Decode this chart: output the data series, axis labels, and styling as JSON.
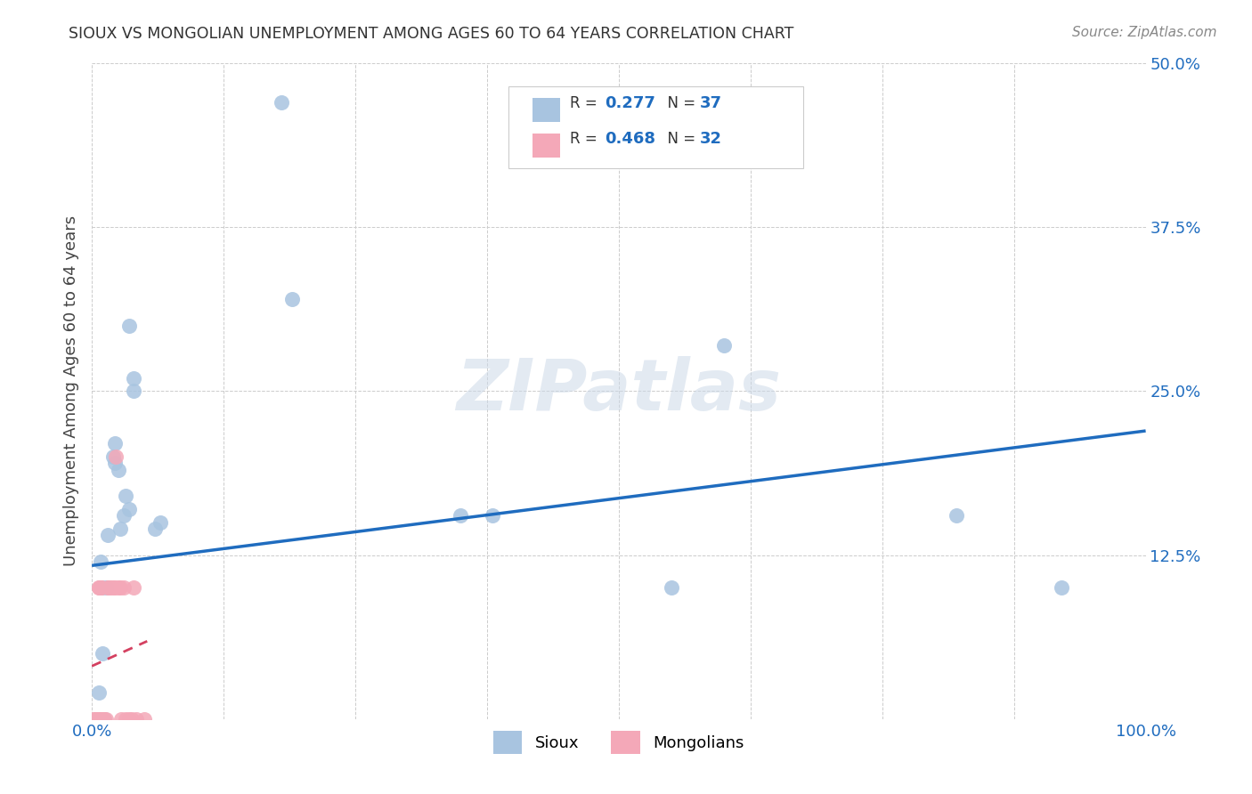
{
  "title": "SIOUX VS MONGOLIAN UNEMPLOYMENT AMONG AGES 60 TO 64 YEARS CORRELATION CHART",
  "source": "Source: ZipAtlas.com",
  "ylabel": "Unemployment Among Ages 60 to 64 years",
  "xlim": [
    0.0,
    1.0
  ],
  "ylim": [
    0.0,
    0.5
  ],
  "xtick_pos": [
    0.0,
    0.125,
    0.25,
    0.375,
    0.5,
    0.625,
    0.75,
    0.875,
    1.0
  ],
  "xticklabels": [
    "0.0%",
    "",
    "",
    "",
    "",
    "",
    "",
    "",
    "100.0%"
  ],
  "ytick_pos": [
    0.0,
    0.125,
    0.25,
    0.375,
    0.5
  ],
  "yticklabels": [
    "",
    "12.5%",
    "25.0%",
    "37.5%",
    "50.0%"
  ],
  "legend_r_sioux": "0.277",
  "legend_n_sioux": "37",
  "legend_r_mongolian": "0.468",
  "legend_n_mongolian": "32",
  "sioux_color": "#a8c4e0",
  "mongolian_color": "#f4a8b8",
  "accent_color": "#1f6cbf",
  "mongolian_line_color": "#d44060",
  "watermark": "ZIPatlas",
  "sioux_scatter_x": [
    0.004,
    0.005,
    0.005,
    0.006,
    0.006,
    0.007,
    0.007,
    0.008,
    0.008,
    0.009,
    0.01,
    0.01,
    0.01,
    0.012,
    0.013,
    0.015,
    0.02,
    0.022,
    0.022,
    0.025,
    0.027,
    0.03,
    0.032,
    0.035,
    0.035,
    0.04,
    0.04,
    0.06,
    0.065,
    0.18,
    0.19,
    0.35,
    0.38,
    0.55,
    0.6,
    0.82,
    0.92
  ],
  "sioux_scatter_y": [
    0.0,
    0.0,
    0.0,
    0.0,
    0.0,
    0.0,
    0.02,
    0.0,
    0.12,
    0.1,
    0.0,
    0.0,
    0.05,
    0.0,
    0.1,
    0.14,
    0.2,
    0.195,
    0.21,
    0.19,
    0.145,
    0.155,
    0.17,
    0.16,
    0.3,
    0.25,
    0.26,
    0.145,
    0.15,
    0.47,
    0.32,
    0.155,
    0.155,
    0.1,
    0.285,
    0.155,
    0.1
  ],
  "mongolian_scatter_x": [
    0.002,
    0.003,
    0.004,
    0.005,
    0.005,
    0.006,
    0.006,
    0.007,
    0.007,
    0.008,
    0.009,
    0.009,
    0.01,
    0.01,
    0.012,
    0.013,
    0.015,
    0.016,
    0.018,
    0.02,
    0.022,
    0.023,
    0.025,
    0.027,
    0.028,
    0.03,
    0.032,
    0.035,
    0.038,
    0.04,
    0.042,
    0.05
  ],
  "mongolian_scatter_y": [
    0.0,
    0.0,
    0.0,
    0.0,
    0.0,
    0.0,
    0.0,
    0.1,
    0.1,
    0.1,
    0.0,
    0.1,
    0.0,
    0.0,
    0.0,
    0.0,
    0.1,
    0.1,
    0.1,
    0.1,
    0.1,
    0.2,
    0.1,
    0.1,
    0.0,
    0.1,
    0.0,
    0.0,
    0.0,
    0.1,
    0.0,
    0.0
  ],
  "background_color": "#ffffff",
  "grid_color": "#cccccc",
  "label_sioux": "Sioux",
  "label_mongolian": "Mongolians"
}
